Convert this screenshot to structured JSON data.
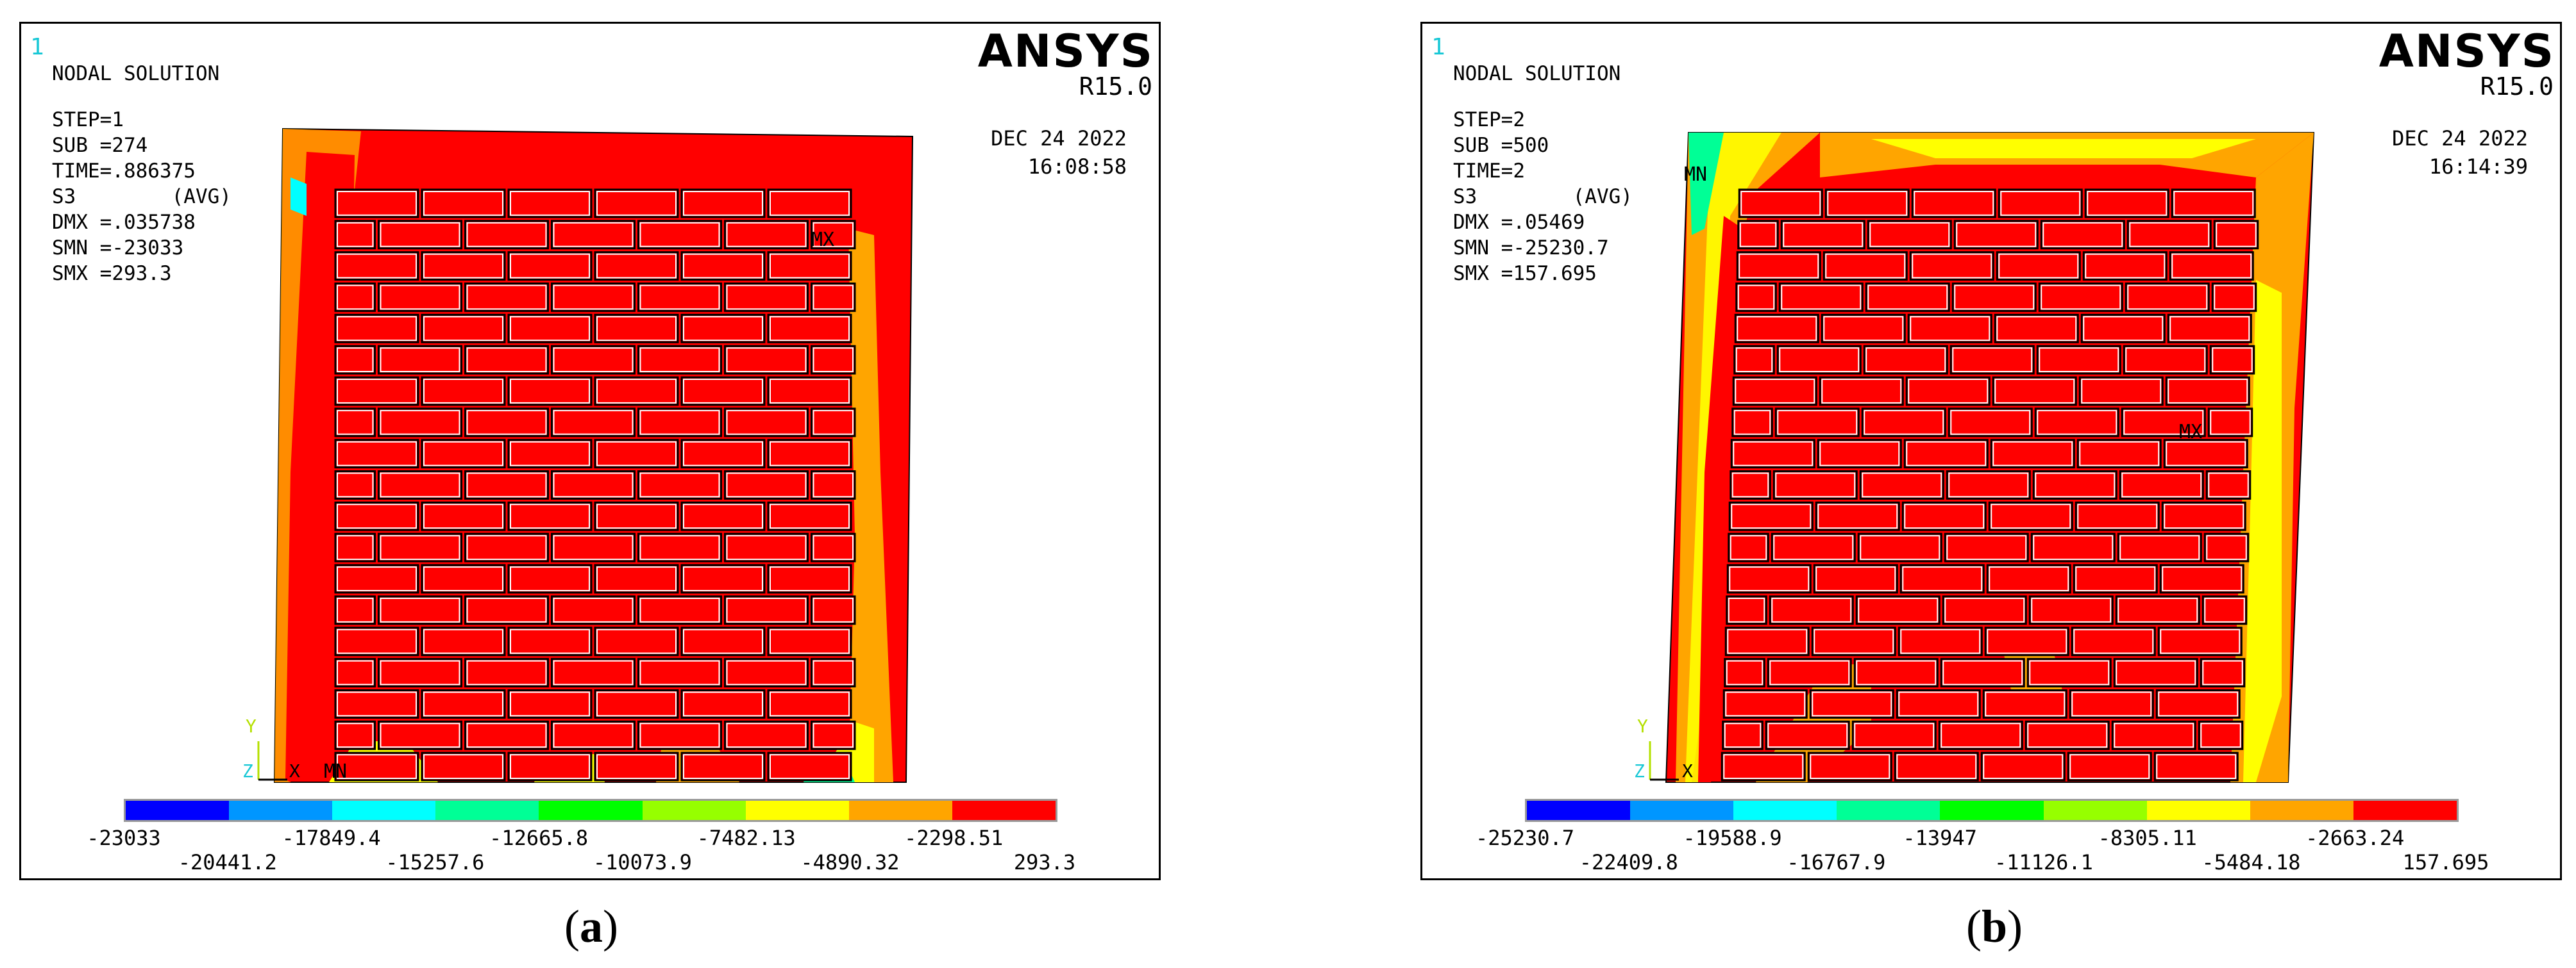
{
  "panels": [
    {
      "id_number": "1",
      "title": "NODAL SOLUTION",
      "step": "STEP=1",
      "sub": "SUB =274",
      "time": "TIME=.886375",
      "s3": "S3        (AVG)",
      "dmx": "DMX =.035738",
      "smn": "SMN =-23033",
      "smx": "SMX =293.3",
      "brand": "ANSYS",
      "version": "R15.0",
      "date": "DEC 24 2022",
      "clock": "16:08:58",
      "marker_mx": "MX",
      "marker_mn": "MN",
      "axis_y": "Y",
      "axis_z": "Z",
      "axis_x": "X",
      "legend_top": [
        "-23033",
        "-17849.4",
        "-12665.8",
        "-7482.13",
        "-2298.51"
      ],
      "legend_bottom": [
        "-20441.2",
        "-15257.6",
        "-10073.9",
        "-4890.32",
        "293.3"
      ],
      "caption": "a"
    },
    {
      "id_number": "1",
      "title": "NODAL SOLUTION",
      "step": "STEP=2",
      "sub": "SUB =500",
      "time": "TIME=2",
      "s3": "S3        (AVG)",
      "dmx": "DMX =.05469",
      "smn": "SMN =-25230.7",
      "smx": "SMX =157.695",
      "brand": "ANSYS",
      "version": "R15.0",
      "date": "DEC 24 2022",
      "clock": "16:14:39",
      "marker_mx": "MX",
      "marker_mn": "MN",
      "axis_y": "Y",
      "axis_z": "Z",
      "axis_x": "X",
      "legend_top": [
        "-25230.7",
        "-19588.9",
        "-13947",
        "-8305.11",
        "-2663.24"
      ],
      "legend_bottom": [
        "-22409.8",
        "-16767.9",
        "-11126.1",
        "-5484.18",
        "157.695"
      ],
      "caption": "b"
    }
  ],
  "colors": {
    "legend": [
      "#0000ff",
      "#0096ff",
      "#00ffff",
      "#00ff96",
      "#00ff00",
      "#96ff00",
      "#ffff00",
      "#ffa500",
      "#ff0000"
    ],
    "brick": "#ff0000",
    "mortar_warm": "#ffa500",
    "mortar_yellow": "#ffff00",
    "id_color": "#19c8d6"
  }
}
